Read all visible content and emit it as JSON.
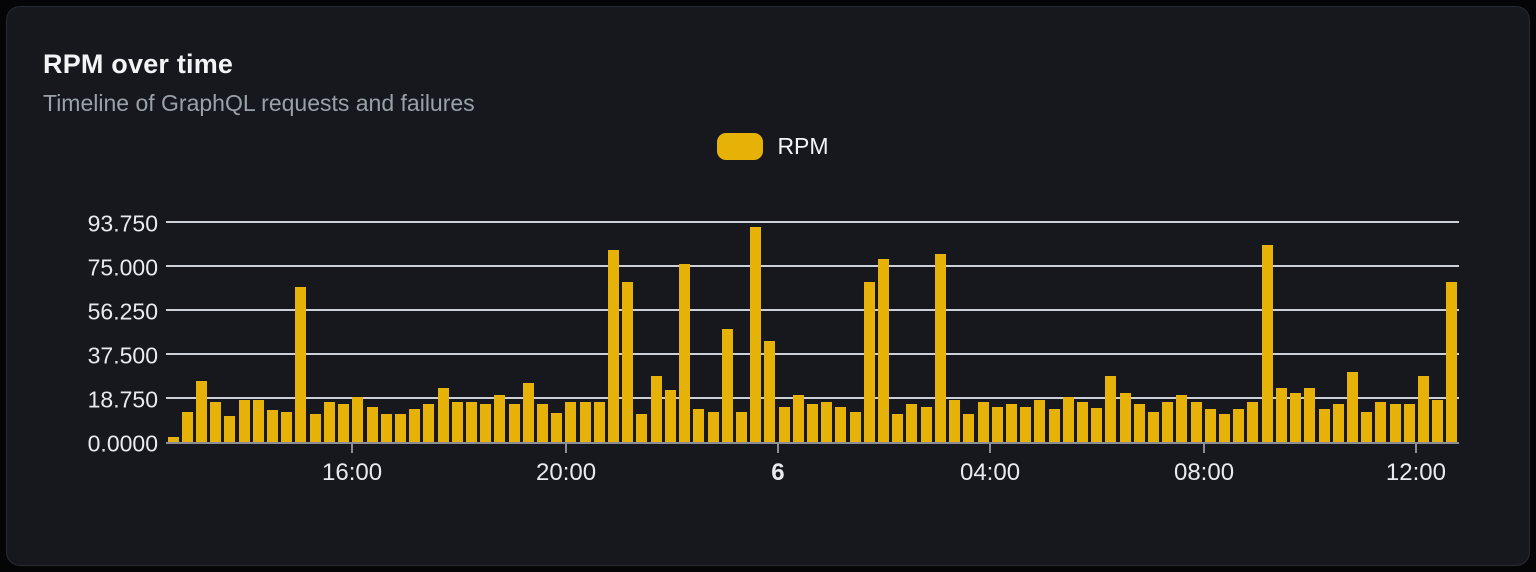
{
  "chart": {
    "title": "RPM over time",
    "subtitle": "Timeline of GraphQL requests and failures",
    "legend_label": "RPM"
  },
  "colors": {
    "bar": "#e6b208",
    "card_bg": "#16181d",
    "gridline": "#dbe1e9",
    "axis": "#8b8e97"
  },
  "chart_data": {
    "type": "bar",
    "title": "RPM over time",
    "subtitle": "Timeline of GraphQL requests and failures",
    "legend": [
      {
        "label": "RPM",
        "color": "#e6b208"
      }
    ],
    "legend_position": "top-center",
    "grid": true,
    "xlabel": "",
    "ylabel": "",
    "axis_max": 93.75,
    "ylim": [
      0,
      97
    ],
    "y_ticks": [
      {
        "label": "93.750",
        "value": 93.75
      },
      {
        "label": "75.000",
        "value": 75
      },
      {
        "label": "56.250",
        "value": 56.25
      },
      {
        "label": "37.500",
        "value": 37.5
      },
      {
        "label": "18.750",
        "value": 18.75
      },
      {
        "label": "0.0000",
        "value": 0
      }
    ],
    "x_ticks": [
      {
        "label": "16:00",
        "pos_pct": 14.39,
        "bold": false
      },
      {
        "label": "20:00",
        "pos_pct": 30.94,
        "bold": false
      },
      {
        "label": "6",
        "pos_pct": 47.33,
        "bold": true
      },
      {
        "label": "04:00",
        "pos_pct": 63.73,
        "bold": false
      },
      {
        "label": "08:00",
        "pos_pct": 80.28,
        "bold": false
      },
      {
        "label": "12:00",
        "pos_pct": 96.67,
        "bold": false
      }
    ],
    "x_unit": "15-minute buckets",
    "values": [
      2,
      13,
      26,
      17,
      11,
      18,
      18,
      13.5,
      13,
      66,
      12,
      17,
      16,
      19,
      15,
      12,
      12,
      14,
      16,
      23,
      17,
      17,
      16,
      20,
      16,
      25,
      16,
      12.5,
      17,
      17,
      17,
      82,
      68,
      12,
      28,
      22,
      76,
      14,
      13,
      48,
      13,
      91.5,
      43,
      15,
      20,
      16,
      17,
      15,
      13,
      68,
      78,
      12,
      16,
      15,
      80,
      18,
      12,
      17,
      15,
      16,
      15,
      18,
      14,
      19,
      17,
      14.5,
      28,
      21,
      16,
      13,
      17,
      20,
      17,
      14,
      12,
      14,
      17,
      84,
      23,
      21,
      23,
      14,
      16,
      30,
      13,
      17,
      16,
      16,
      28,
      18,
      68
    ]
  }
}
